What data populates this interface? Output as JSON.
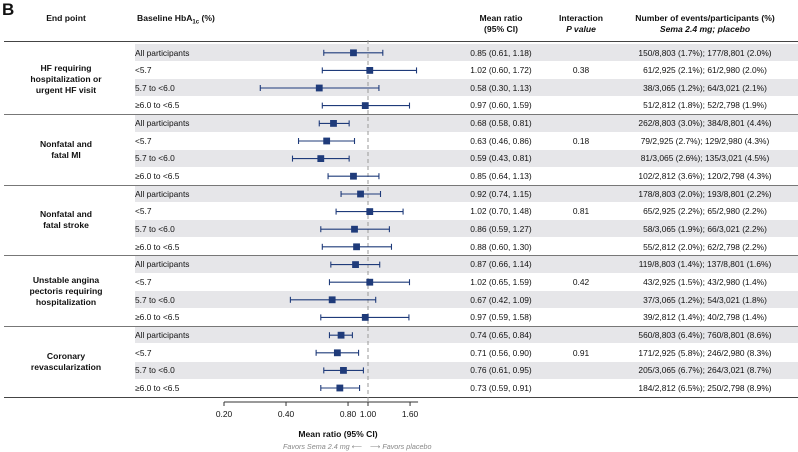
{
  "panel_label": "B",
  "headers": {
    "endpoint": "End point",
    "baseline_main": "Baseline HbA",
    "baseline_sub": "1c",
    "baseline_tail": " (%)",
    "ratio_line1": "Mean ratio",
    "ratio_line2": "(95% CI)",
    "interaction_line1": "Interaction",
    "interaction_line2": "P value",
    "events_line1": "Number of events/participants (%)",
    "events_line2": "Sema 2.4 mg; placebo"
  },
  "groups": [
    {
      "name_lines": [
        "HF requiring",
        "hospitalization or",
        "urgent HF visit"
      ],
      "p_value": "0.38"
    },
    {
      "name_lines": [
        "Nonfatal and",
        "fatal MI"
      ],
      "p_value": "0.18"
    },
    {
      "name_lines": [
        "Nonfatal and",
        "fatal stroke"
      ],
      "p_value": "0.81"
    },
    {
      "name_lines": [
        "Unstable angina",
        "pectoris requiring",
        "hospitalization"
      ],
      "p_value": "0.42"
    },
    {
      "name_lines": [
        "Coronary",
        "revascularization"
      ],
      "p_value": "0.91"
    }
  ],
  "rows": [
    {
      "sub": "All participants",
      "ratio_text": "0.85 (0.61, 1.18)",
      "events": "150/8,803 (1.7%); 177/8,801 (2.0%)"
    },
    {
      "sub": "<5.7",
      "ratio_text": "1.02 (0.60, 1.72)",
      "events": "61/2,925 (2.1%); 61/2,980 (2.0%)"
    },
    {
      "sub": "5.7 to <6.0",
      "ratio_text": "0.58 (0.30, 1.13)",
      "events": "38/3,065 (1.2%); 64/3,021 (2.1%)"
    },
    {
      "sub": "≥6.0 to <6.5",
      "ratio_text": "0.97 (0.60, 1.59)",
      "events": "51/2,812 (1.8%); 52/2,798 (1.9%)"
    },
    {
      "sub": "All participants",
      "ratio_text": "0.68 (0.58, 0.81)",
      "events": "262/8,803 (3.0%); 384/8,801 (4.4%)"
    },
    {
      "sub": "<5.7",
      "ratio_text": "0.63 (0.46, 0.86)",
      "events": "79/2,925 (2.7%); 129/2,980 (4.3%)"
    },
    {
      "sub": "5.7 to <6.0",
      "ratio_text": "0.59 (0.43, 0.81)",
      "events": "81/3,065 (2.6%); 135/3,021 (4.5%)"
    },
    {
      "sub": "≥6.0 to <6.5",
      "ratio_text": "0.85 (0.64, 1.13)",
      "events": "102/2,812 (3.6%); 120/2,798 (4.3%)"
    },
    {
      "sub": "All participants",
      "ratio_text": "0.92 (0.74, 1.15)",
      "events": "178/8,803 (2.0%); 193/8,801 (2.2%)"
    },
    {
      "sub": "<5.7",
      "ratio_text": "1.02 (0.70, 1.48)",
      "events": "65/2,925 (2.2%); 65/2,980 (2.2%)"
    },
    {
      "sub": "5.7 to <6.0",
      "ratio_text": "0.86 (0.59, 1.27)",
      "events": "58/3,065 (1.9%); 66/3,021 (2.2%)"
    },
    {
      "sub": "≥6.0 to <6.5",
      "ratio_text": "0.88 (0.60, 1.30)",
      "events": "55/2,812 (2.0%); 62/2,798 (2.2%)"
    },
    {
      "sub": "All participants",
      "ratio_text": "0.87 (0.66, 1.14)",
      "events": "119/8,803 (1.4%); 137/8,801 (1.6%)"
    },
    {
      "sub": "<5.7",
      "ratio_text": "1.02 (0.65, 1.59)",
      "events": "43/2,925 (1.5%); 43/2,980 (1.4%)"
    },
    {
      "sub": "5.7 to <6.0",
      "ratio_text": "0.67 (0.42, 1.09)",
      "events": "37/3,065 (1.2%); 54/3,021 (1.8%)"
    },
    {
      "sub": "≥6.0 to <6.5",
      "ratio_text": "0.97 (0.59, 1.58)",
      "events": "39/2,812 (1.4%); 40/2,798 (1.4%)"
    },
    {
      "sub": "All participants",
      "ratio_text": "0.74 (0.65, 0.84)",
      "events": "560/8,803 (6.4%); 760/8,801 (8.6%)"
    },
    {
      "sub": "<5.7",
      "ratio_text": "0.71 (0.56, 0.90)",
      "events": "171/2,925 (5.8%); 246/2,980 (8.3%)"
    },
    {
      "sub": "5.7 to <6.0",
      "ratio_text": "0.76 (0.61, 0.95)",
      "events": "205/3,065 (6.7%); 264/3,021 (8.7%)"
    },
    {
      "sub": "≥6.0 to <6.5",
      "ratio_text": "0.73 (0.59, 0.91)",
      "events": "184/2,812 (6.5%); 250/2,798 (8.9%)"
    }
  ],
  "axis": {
    "title": "Mean ratio (95% CI)",
    "favors_left": "Favors Sema 2.4 mg",
    "favors_right": "Favors placebo",
    "ticks": [
      "0.20",
      "0.40",
      "0.80",
      "1.00",
      "1.60"
    ]
  },
  "chart_data": {
    "type": "forest",
    "scale": "log",
    "xlim": [
      0.2,
      1.75
    ],
    "reference_line": 1.0,
    "tick_values": [
      0.2,
      0.4,
      0.8,
      1.0,
      1.6
    ],
    "xlabel": "Mean ratio (95% CI)",
    "estimates": [
      {
        "group": "HF requiring hospitalization or urgent HF visit",
        "subgroup": "All participants",
        "ratio": 0.85,
        "lo": 0.61,
        "hi": 1.18
      },
      {
        "group": "HF requiring hospitalization or urgent HF visit",
        "subgroup": "<5.7",
        "ratio": 1.02,
        "lo": 0.6,
        "hi": 1.72
      },
      {
        "group": "HF requiring hospitalization or urgent HF visit",
        "subgroup": "5.7 to <6.0",
        "ratio": 0.58,
        "lo": 0.3,
        "hi": 1.13
      },
      {
        "group": "HF requiring hospitalization or urgent HF visit",
        "subgroup": "≥6.0 to <6.5",
        "ratio": 0.97,
        "lo": 0.6,
        "hi": 1.59
      },
      {
        "group": "Nonfatal and fatal MI",
        "subgroup": "All participants",
        "ratio": 0.68,
        "lo": 0.58,
        "hi": 0.81
      },
      {
        "group": "Nonfatal and fatal MI",
        "subgroup": "<5.7",
        "ratio": 0.63,
        "lo": 0.46,
        "hi": 0.86
      },
      {
        "group": "Nonfatal and fatal MI",
        "subgroup": "5.7 to <6.0",
        "ratio": 0.59,
        "lo": 0.43,
        "hi": 0.81
      },
      {
        "group": "Nonfatal and fatal MI",
        "subgroup": "≥6.0 to <6.5",
        "ratio": 0.85,
        "lo": 0.64,
        "hi": 1.13
      },
      {
        "group": "Nonfatal and fatal stroke",
        "subgroup": "All participants",
        "ratio": 0.92,
        "lo": 0.74,
        "hi": 1.15
      },
      {
        "group": "Nonfatal and fatal stroke",
        "subgroup": "<5.7",
        "ratio": 1.02,
        "lo": 0.7,
        "hi": 1.48
      },
      {
        "group": "Nonfatal and fatal stroke",
        "subgroup": "5.7 to <6.0",
        "ratio": 0.86,
        "lo": 0.59,
        "hi": 1.27
      },
      {
        "group": "Nonfatal and fatal stroke",
        "subgroup": "≥6.0 to <6.5",
        "ratio": 0.88,
        "lo": 0.6,
        "hi": 1.3
      },
      {
        "group": "Unstable angina pectoris requiring hospitalization",
        "subgroup": "All participants",
        "ratio": 0.87,
        "lo": 0.66,
        "hi": 1.14
      },
      {
        "group": "Unstable angina pectoris requiring hospitalization",
        "subgroup": "<5.7",
        "ratio": 1.02,
        "lo": 0.65,
        "hi": 1.59
      },
      {
        "group": "Unstable angina pectoris requiring hospitalization",
        "subgroup": "5.7 to <6.0",
        "ratio": 0.67,
        "lo": 0.42,
        "hi": 1.09
      },
      {
        "group": "Unstable angina pectoris requiring hospitalization",
        "subgroup": "≥6.0 to <6.5",
        "ratio": 0.97,
        "lo": 0.59,
        "hi": 1.58
      },
      {
        "group": "Coronary revascularization",
        "subgroup": "All participants",
        "ratio": 0.74,
        "lo": 0.65,
        "hi": 0.84
      },
      {
        "group": "Coronary revascularization",
        "subgroup": "<5.7",
        "ratio": 0.71,
        "lo": 0.56,
        "hi": 0.9
      },
      {
        "group": "Coronary revascularization",
        "subgroup": "5.7 to <6.0",
        "ratio": 0.76,
        "lo": 0.61,
        "hi": 0.95
      },
      {
        "group": "Coronary revascularization",
        "subgroup": "≥6.0 to <6.5",
        "ratio": 0.73,
        "lo": 0.59,
        "hi": 0.91
      }
    ]
  },
  "colors": {
    "marker": "#1f3b7a",
    "reference_line": "#999999",
    "shade": "#e6e6e9"
  }
}
